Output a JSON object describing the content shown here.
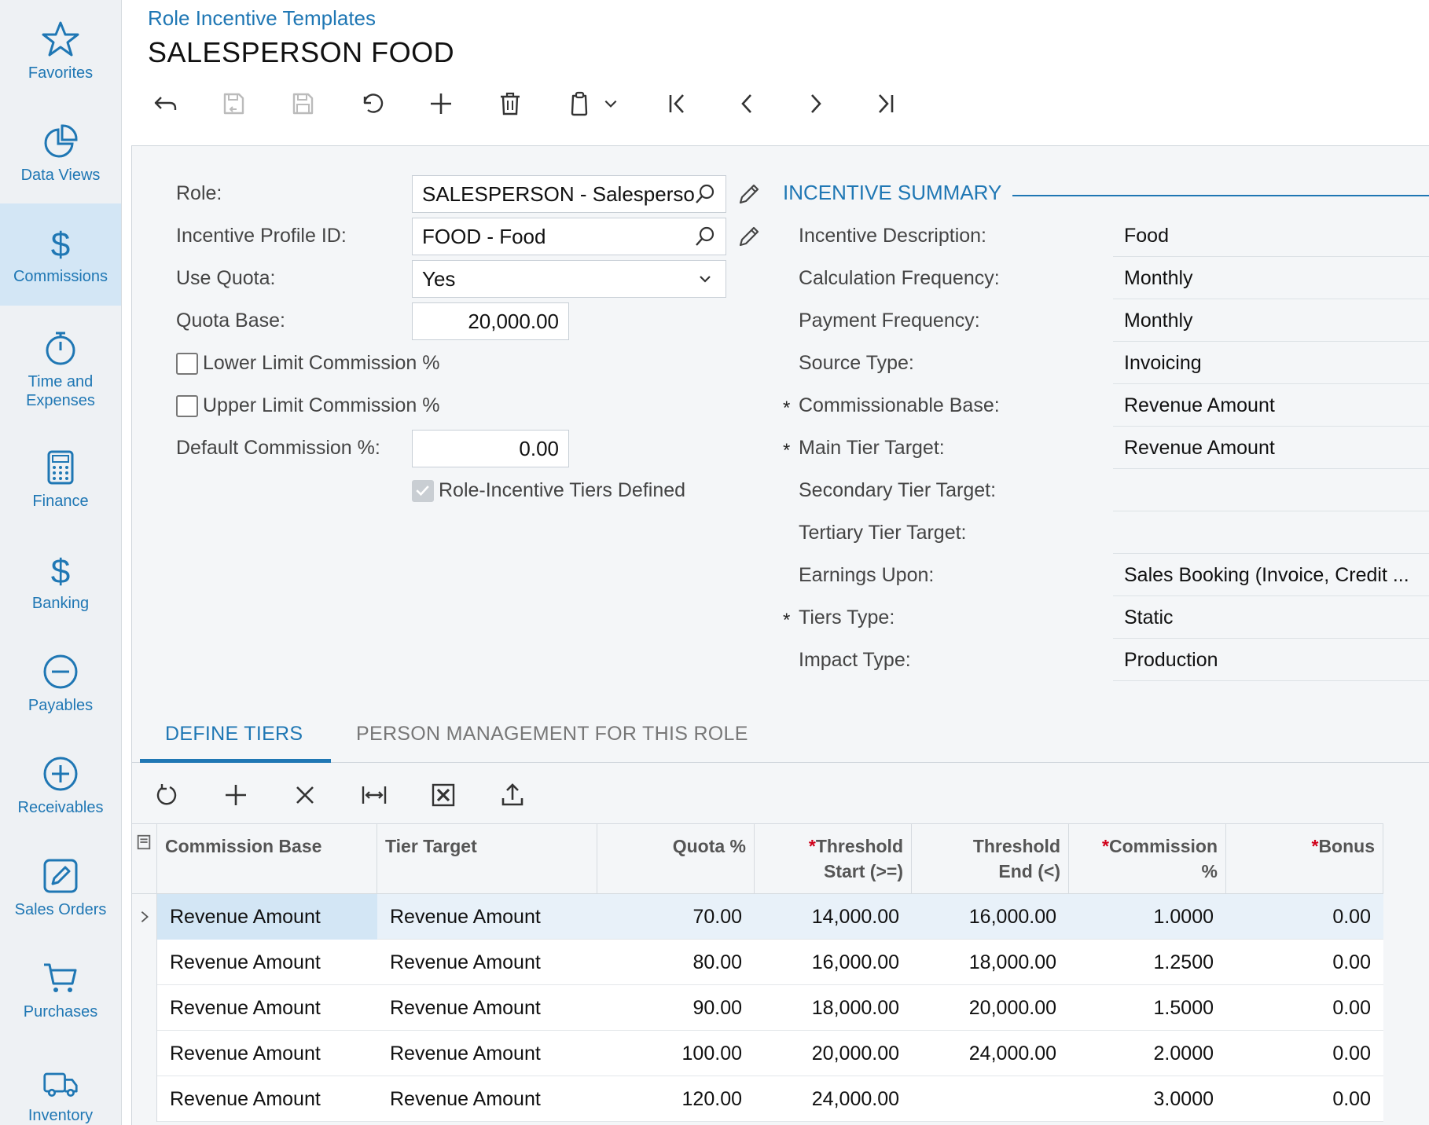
{
  "sidebar": {
    "items": [
      {
        "label": "Favorites",
        "icon": "star-icon"
      },
      {
        "label": "Data Views",
        "icon": "pie-chart-icon"
      },
      {
        "label": "Commissions",
        "icon": "dollar-icon",
        "active": true
      },
      {
        "label": "Time and Expenses",
        "icon": "stopwatch-icon"
      },
      {
        "label": "Finance",
        "icon": "calculator-icon"
      },
      {
        "label": "Banking",
        "icon": "dollar-icon"
      },
      {
        "label": "Payables",
        "icon": "minus-circle-icon"
      },
      {
        "label": "Receivables",
        "icon": "plus-circle-icon"
      },
      {
        "label": "Sales Orders",
        "icon": "pencil-square-icon"
      },
      {
        "label": "Purchases",
        "icon": "cart-icon"
      },
      {
        "label": "Inventory",
        "icon": "truck-icon"
      }
    ]
  },
  "header": {
    "breadcrumb": "Role Incentive Templates",
    "title": "SALESPERSON FOOD"
  },
  "form": {
    "role_label": "Role:",
    "role_value": "SALESPERSON - Salesperson",
    "profile_label": "Incentive Profile ID:",
    "profile_value": "FOOD - Food",
    "use_quota_label": "Use Quota:",
    "use_quota_value": "Yes",
    "quota_base_label": "Quota Base:",
    "quota_base_value": "20,000.00",
    "lower_limit_label": "Lower Limit Commission %",
    "upper_limit_label": "Upper Limit Commission %",
    "default_commission_label": "Default Commission %:",
    "default_commission_value": "0.00",
    "tiers_defined_label": "Role-Incentive Tiers Defined"
  },
  "summary": {
    "title": "INCENTIVE SUMMARY",
    "rows": [
      {
        "label": "Incentive Description:",
        "value": "Food",
        "required": false
      },
      {
        "label": "Calculation Frequency:",
        "value": "Monthly",
        "required": false
      },
      {
        "label": "Payment Frequency:",
        "value": "Monthly",
        "required": false
      },
      {
        "label": "Source Type:",
        "value": "Invoicing",
        "required": false
      },
      {
        "label": "Commissionable Base:",
        "value": "Revenue Amount",
        "required": true
      },
      {
        "label": "Main Tier Target:",
        "value": "Revenue Amount",
        "required": true
      },
      {
        "label": "Secondary Tier Target:",
        "value": "",
        "required": false
      },
      {
        "label": "Tertiary Tier Target:",
        "value": "",
        "required": false
      },
      {
        "label": "Earnings Upon:",
        "value": "Sales Booking (Invoice, Credit ...",
        "required": false
      },
      {
        "label": "Tiers Type:",
        "value": "Static",
        "required": true
      },
      {
        "label": "Impact Type:",
        "value": "Production",
        "required": false
      }
    ],
    "required_mark": "*"
  },
  "tabs": [
    {
      "label": "DEFINE TIERS",
      "active": true
    },
    {
      "label": "PERSON MANAGEMENT FOR THIS ROLE",
      "active": false
    }
  ],
  "grid": {
    "columns": [
      {
        "l1": "Commission Base",
        "l2": "",
        "required": false
      },
      {
        "l1": "Tier Target",
        "l2": "",
        "required": false
      },
      {
        "l1": "Quota %",
        "l2": "",
        "required": false
      },
      {
        "l1": "Threshold",
        "l2": "Start (>=)",
        "required": true
      },
      {
        "l1": "Threshold",
        "l2": "End (<)",
        "required": false
      },
      {
        "l1": "Commission",
        "l2": "%",
        "required": true
      },
      {
        "l1": "Bonus",
        "l2": "",
        "required": true
      }
    ],
    "rows": [
      [
        "Revenue Amount",
        "Revenue Amount",
        "70.00",
        "14,000.00",
        "16,000.00",
        "1.0000",
        "0.00"
      ],
      [
        "Revenue Amount",
        "Revenue Amount",
        "80.00",
        "16,000.00",
        "18,000.00",
        "1.2500",
        "0.00"
      ],
      [
        "Revenue Amount",
        "Revenue Amount",
        "90.00",
        "18,000.00",
        "20,000.00",
        "1.5000",
        "0.00"
      ],
      [
        "Revenue Amount",
        "Revenue Amount",
        "100.00",
        "20,000.00",
        "24,000.00",
        "2.0000",
        "0.00"
      ],
      [
        "Revenue Amount",
        "Revenue Amount",
        "120.00",
        "24,000.00",
        "",
        "3.0000",
        "0.00"
      ]
    ]
  },
  "colors": {
    "accent": "#1f77b4",
    "required": "#d0021b"
  }
}
